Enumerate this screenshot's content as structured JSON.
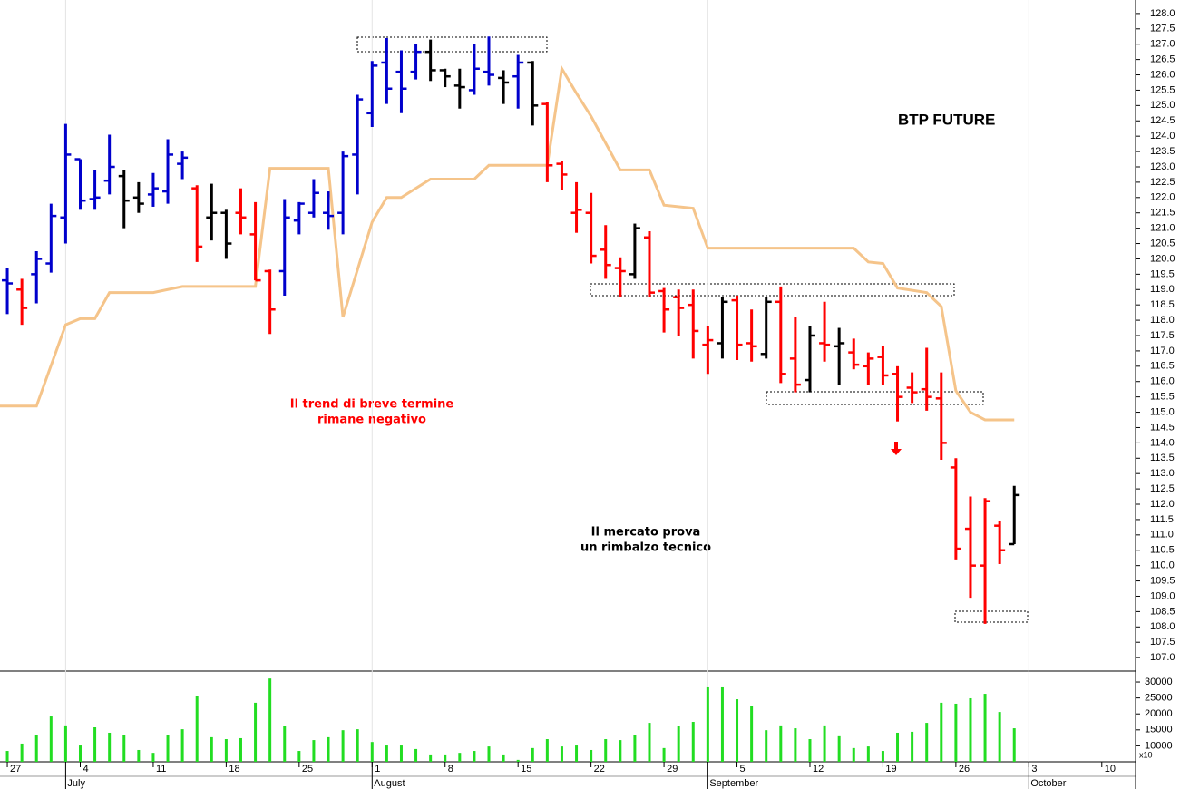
{
  "chart_data": [
    {
      "type": "ohlc",
      "title": "BTP FUTURE",
      "annotations": [
        "Il trend di breve termine",
        "rimane negativo",
        "Il mercato prova",
        "un rimbalzo tecnico"
      ],
      "x": [
        0,
        1,
        2,
        3,
        4,
        5,
        6,
        7,
        8,
        9,
        10,
        11,
        12,
        13,
        14,
        15,
        16,
        17,
        18,
        19,
        20,
        21,
        22,
        23,
        24,
        25,
        26,
        27,
        28,
        29,
        30,
        31,
        32,
        33,
        34,
        35,
        36,
        37,
        38,
        39,
        40,
        41,
        42,
        43,
        44,
        45,
        46,
        47,
        48,
        49,
        50,
        51,
        52,
        53,
        54,
        55,
        56,
        57,
        58,
        59,
        60,
        61,
        62,
        63,
        64,
        65,
        66,
        67,
        68,
        69
      ],
      "open": [
        119.3,
        119.0,
        119.5,
        119.85,
        121.35,
        123.25,
        121.95,
        122.55,
        122.7,
        122.0,
        122.1,
        122.2,
        123.1,
        122.3,
        121.35,
        121.5,
        121.5,
        120.8,
        119.6,
        119.6,
        121.25,
        121.5,
        121.5,
        121.5,
        123.4,
        124.75,
        126.4,
        126.1,
        126.1,
        126.75,
        126.15,
        125.65,
        125.5,
        126.1,
        125.9,
        125.95,
        126.4,
        125.05,
        123.1,
        121.5,
        121.5,
        120.3,
        119.7,
        119.5,
        120.7,
        118.95,
        118.75,
        118.5,
        117.2,
        117.25,
        118.65,
        117.25,
        116.9,
        118.6,
        116.75,
        116.05,
        117.25,
        117.15,
        116.95,
        116.5,
        116.8,
        116.25,
        115.8,
        115.75,
        115.45,
        113.2,
        111.2,
        110.0,
        111.3,
        110.7
      ],
      "high": [
        119.7,
        119.35,
        120.25,
        121.8,
        124.4,
        123.25,
        122.9,
        124.05,
        122.9,
        122.5,
        122.8,
        123.9,
        123.5,
        122.4,
        122.45,
        121.6,
        122.3,
        121.85,
        119.65,
        121.95,
        121.85,
        122.6,
        122.2,
        123.5,
        125.35,
        126.45,
        127.2,
        126.8,
        127.0,
        127.15,
        126.2,
        126.2,
        127.0,
        127.25,
        126.15,
        126.65,
        126.45,
        125.1,
        123.2,
        122.5,
        122.15,
        121.1,
        120.05,
        121.15,
        120.9,
        119.05,
        119.0,
        119.0,
        117.8,
        118.75,
        118.8,
        118.35,
        118.75,
        119.1,
        118.1,
        117.8,
        118.6,
        117.75,
        117.4,
        116.95,
        117.15,
        116.5,
        116.3,
        117.1,
        116.3,
        113.5,
        112.25,
        112.2,
        111.45,
        112.6
      ],
      "low": [
        118.2,
        117.85,
        118.55,
        119.55,
        120.5,
        121.6,
        121.6,
        122.1,
        121.0,
        121.5,
        121.7,
        121.8,
        122.6,
        119.9,
        120.6,
        120.0,
        120.8,
        119.3,
        117.55,
        118.8,
        120.8,
        121.35,
        120.95,
        120.8,
        122.1,
        124.3,
        125.05,
        124.75,
        125.85,
        125.8,
        125.6,
        124.9,
        125.35,
        125.65,
        125.05,
        124.9,
        124.35,
        122.5,
        122.25,
        120.85,
        119.85,
        119.35,
        118.75,
        119.35,
        118.75,
        117.6,
        117.5,
        116.75,
        116.25,
        116.75,
        116.7,
        116.65,
        116.75,
        115.95,
        115.65,
        115.65,
        116.65,
        115.9,
        116.4,
        115.9,
        115.9,
        114.7,
        115.3,
        115.05,
        113.45,
        110.2,
        108.95,
        108.1,
        110.05,
        110.7
      ],
      "close": [
        119.2,
        118.4,
        120.0,
        121.4,
        123.4,
        121.9,
        122.0,
        123.0,
        121.9,
        121.8,
        122.3,
        123.4,
        123.3,
        120.4,
        121.5,
        120.5,
        121.35,
        119.3,
        118.35,
        121.35,
        121.8,
        122.15,
        121.4,
        123.35,
        125.2,
        126.3,
        125.55,
        125.55,
        126.75,
        126.15,
        125.95,
        125.6,
        126.2,
        126.0,
        125.75,
        126.4,
        125.0,
        123.05,
        122.75,
        121.6,
        120.1,
        119.8,
        119.6,
        121.0,
        118.9,
        118.35,
        118.4,
        117.65,
        117.35,
        118.6,
        117.2,
        117.15,
        118.6,
        116.25,
        115.9,
        117.5,
        117.2,
        117.25,
        116.55,
        116.75,
        116.2,
        115.5,
        115.65,
        115.5,
        114.0,
        110.55,
        110.0,
        112.1,
        110.5,
        112.3
      ],
      "colors": [
        "#0000cc",
        "#ff0000",
        "#0000cc",
        "#0000cc",
        "#0000cc",
        "#0000cc",
        "#0000cc",
        "#0000cc",
        "#000000",
        "#000000",
        "#0000cc",
        "#0000cc",
        "#0000cc",
        "#ff0000",
        "#000000",
        "#000000",
        "#ff0000",
        "#ff0000",
        "#ff0000",
        "#0000cc",
        "#0000cc",
        "#0000cc",
        "#0000cc",
        "#0000cc",
        "#0000cc",
        "#0000cc",
        "#0000cc",
        "#0000cc",
        "#0000cc",
        "#000000",
        "#000000",
        "#000000",
        "#0000cc",
        "#0000cc",
        "#000000",
        "#0000cc",
        "#000000",
        "#ff0000",
        "#ff0000",
        "#ff0000",
        "#ff0000",
        "#ff0000",
        "#ff0000",
        "#000000",
        "#ff0000",
        "#ff0000",
        "#ff0000",
        "#ff0000",
        "#ff0000",
        "#000000",
        "#ff0000",
        "#ff0000",
        "#000000",
        "#ff0000",
        "#ff0000",
        "#000000",
        "#ff0000",
        "#000000",
        "#ff0000",
        "#ff0000",
        "#ff0000",
        "#ff0000",
        "#ff0000",
        "#ff0000",
        "#ff0000",
        "#ff0000",
        "#ff0000",
        "#ff0000",
        "#ff0000",
        "#000000"
      ],
      "trend": {
        "color": "#f5c48a",
        "x": [
          -0.5,
          2,
          4,
          5,
          6,
          7,
          10,
          12,
          17,
          18,
          22,
          23,
          25,
          26,
          27,
          29,
          32,
          33,
          37,
          38,
          39,
          40,
          42,
          44,
          45,
          47,
          48,
          58,
          59,
          60,
          61,
          63,
          64,
          65,
          66,
          67,
          69
        ],
        "values": [
          115.2,
          115.2,
          117.85,
          118.05,
          118.05,
          118.9,
          118.9,
          119.1,
          119.1,
          122.95,
          122.95,
          118.1,
          121.2,
          122.0,
          122.0,
          122.6,
          122.6,
          123.05,
          123.05,
          126.2,
          125.4,
          124.65,
          122.9,
          122.9,
          121.75,
          121.65,
          120.35,
          120.35,
          119.9,
          119.85,
          119.05,
          118.9,
          118.45,
          115.7,
          115.0,
          114.75,
          114.75
        ]
      },
      "xlim": [
        -0.5,
        77.5
      ],
      "xticks": [
        {
          "value": 0,
          "label": "27"
        },
        {
          "value": 5,
          "label": "4"
        },
        {
          "value": 10,
          "label": "11"
        },
        {
          "value": 15,
          "label": "18"
        },
        {
          "value": 20,
          "label": "25"
        },
        {
          "value": 25,
          "label": "1"
        },
        {
          "value": 30,
          "label": "8"
        },
        {
          "value": 35,
          "label": "15"
        },
        {
          "value": 40,
          "label": "22"
        },
        {
          "value": 45,
          "label": "29"
        },
        {
          "value": 50,
          "label": "5"
        },
        {
          "value": 55,
          "label": "12"
        },
        {
          "value": 60,
          "label": "19"
        },
        {
          "value": 65,
          "label": "26"
        },
        {
          "value": 70,
          "label": "3"
        },
        {
          "value": 75,
          "label": "10"
        }
      ],
      "month_ticks": [
        {
          "value": 4,
          "label": "July"
        },
        {
          "value": 25,
          "label": "August"
        },
        {
          "value": 48,
          "label": "September"
        },
        {
          "value": 70,
          "label": "October"
        }
      ],
      "ylim": [
        106.56,
        128.44
      ],
      "yticks": [
        {
          "value": 107,
          "label": "107.0"
        },
        {
          "value": 107.5,
          "label": "107.5"
        },
        {
          "value": 108,
          "label": "108.0"
        },
        {
          "value": 108.5,
          "label": "108.5"
        },
        {
          "value": 109,
          "label": "109.0"
        },
        {
          "value": 109.5,
          "label": "109.5"
        },
        {
          "value": 110,
          "label": "110.0"
        },
        {
          "value": 110.5,
          "label": "110.5"
        },
        {
          "value": 111,
          "label": "111.0"
        },
        {
          "value": 111.5,
          "label": "111.5"
        },
        {
          "value": 112,
          "label": "112.0"
        },
        {
          "value": 112.5,
          "label": "112.5"
        },
        {
          "value": 113,
          "label": "113.0"
        },
        {
          "value": 113.5,
          "label": "113.5"
        },
        {
          "value": 114,
          "label": "114.0"
        },
        {
          "value": 114.5,
          "label": "114.5"
        },
        {
          "value": 115,
          "label": "115.0"
        },
        {
          "value": 115.5,
          "label": "115.5"
        },
        {
          "value": 116,
          "label": "116.0"
        },
        {
          "value": 116.5,
          "label": "116.5"
        },
        {
          "value": 117,
          "label": "117.0"
        },
        {
          "value": 117.5,
          "label": "117.5"
        },
        {
          "value": 118,
          "label": "118.0"
        },
        {
          "value": 118.5,
          "label": "118.5"
        },
        {
          "value": 119,
          "label": "119.0"
        },
        {
          "value": 119.5,
          "label": "119.5"
        },
        {
          "value": 120,
          "label": "120.0"
        },
        {
          "value": 120.5,
          "label": "120.5"
        },
        {
          "value": 121,
          "label": "121.0"
        },
        {
          "value": 121.5,
          "label": "121.5"
        },
        {
          "value": 122,
          "label": "122.0"
        },
        {
          "value": 122.5,
          "label": "122.5"
        },
        {
          "value": 123,
          "label": "123.0"
        },
        {
          "value": 123.5,
          "label": "123.5"
        },
        {
          "value": 124,
          "label": "124.0"
        },
        {
          "value": 124.5,
          "label": "124.5"
        },
        {
          "value": 125,
          "label": "125.0"
        },
        {
          "value": 125.5,
          "label": "125.5"
        },
        {
          "value": 126,
          "label": "126.0"
        },
        {
          "value": 126.5,
          "label": "126.5"
        },
        {
          "value": 127,
          "label": "127.0"
        },
        {
          "value": 127.5,
          "label": "127.5"
        },
        {
          "value": 128,
          "label": "128.0"
        }
      ]
    },
    {
      "type": "bar",
      "ylabel": "x10",
      "color": "#22dd22",
      "values": [
        8400,
        10700,
        13500,
        19200,
        16400,
        10100,
        15800,
        14100,
        13500,
        8700,
        7800,
        13500,
        15200,
        25700,
        12700,
        12100,
        12400,
        23500,
        31100,
        16100,
        8400,
        11800,
        12700,
        14900,
        15200,
        11200,
        10100,
        10100,
        9000,
        7300,
        7300,
        7800,
        8400,
        9800,
        7300,
        5600,
        9300,
        12100,
        9800,
        10100,
        8700,
        12100,
        11800,
        13500,
        17200,
        9300,
        16100,
        17500,
        28600,
        28600,
        24600,
        22600,
        14900,
        16400,
        15500,
        12100,
        16400,
        13000,
        9300,
        9800,
        8400,
        14100,
        14400,
        17200,
        23500,
        23200,
        24900,
        26300,
        20600,
        15500
      ],
      "ylim": [
        5000,
        32000
      ],
      "yticks": [
        10000,
        15000,
        20000,
        25000,
        30000
      ]
    }
  ]
}
